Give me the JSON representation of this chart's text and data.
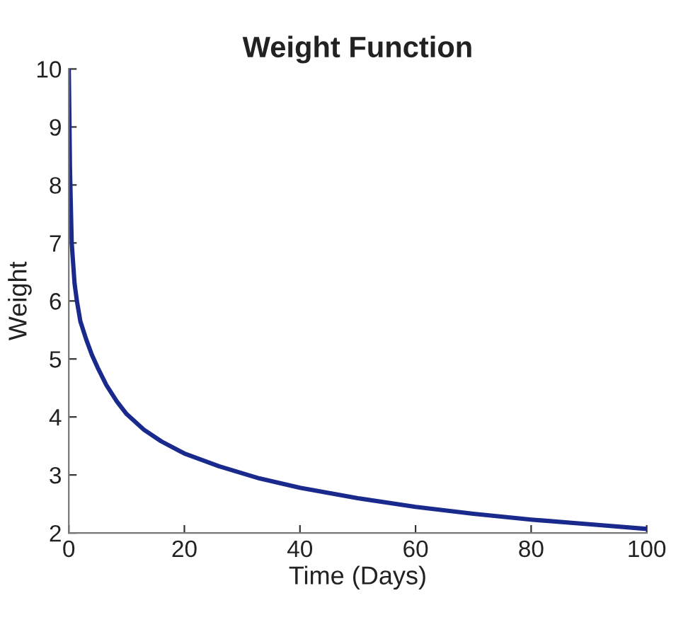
{
  "chart_data": {
    "type": "line",
    "title": "Weight Function",
    "xlabel": "Time (Days)",
    "ylabel": "Weight",
    "x": [
      0,
      0.2,
      0.5,
      1,
      1.4,
      2,
      3,
      4,
      5,
      6.5,
      8.3,
      10,
      13,
      16,
      20,
      26,
      33,
      40,
      50,
      60,
      70,
      80,
      90,
      100
    ],
    "series": [
      {
        "color": "#1a2a8c",
        "values": [
          10,
          8.3,
          7.0,
          6.3,
          6.0,
          5.65,
          5.34,
          5.07,
          4.85,
          4.55,
          4.27,
          4.05,
          3.78,
          3.58,
          3.37,
          3.15,
          2.94,
          2.78,
          2.6,
          2.45,
          2.33,
          2.23,
          2.15,
          2.07
        ]
      }
    ],
    "xlim": [
      0,
      100
    ],
    "ylim": [
      2,
      10
    ],
    "xticks": [
      0,
      20,
      40,
      60,
      80,
      100
    ],
    "yticks": [
      2,
      3,
      4,
      5,
      6,
      7,
      8,
      9,
      10
    ],
    "grid": false,
    "legend": false,
    "marker": "none",
    "line_style": "solid"
  }
}
